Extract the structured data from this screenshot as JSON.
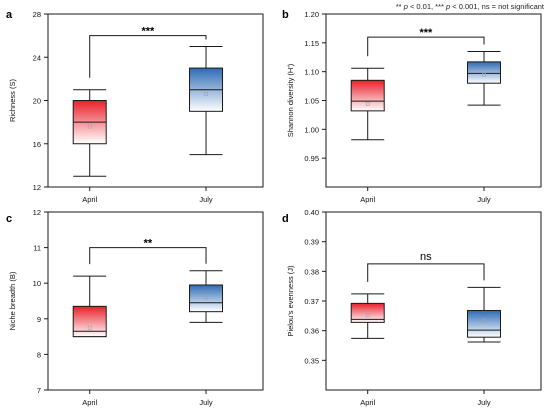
{
  "significance_note": {
    "part1": "** ",
    "p1": "p",
    "part2": " < 0.01, *** ",
    "p2": "p",
    "part3": " < 0.001, ns = not significant"
  },
  "colors": {
    "april_fill_top": "#e8202a",
    "april_fill_bottom": "#ffffff",
    "july_fill_top": "#2e6bb4",
    "july_fill_bottom": "#ffffff",
    "line": "#1a1a1a"
  },
  "chart_data": [
    {
      "type": "box",
      "panel_label": "a",
      "ylabel": "Richness (S)",
      "ylim": [
        12,
        28
      ],
      "yticks": [
        12,
        16,
        20,
        24,
        28
      ],
      "tick_labels": [
        "12",
        "16",
        "20",
        "24",
        "28"
      ],
      "categories": [
        "April",
        "July"
      ],
      "boxes": [
        {
          "category": "April",
          "min": 13,
          "q1": 16,
          "median": 18,
          "q3": 20,
          "max": 21,
          "mean": 17.6,
          "color": "red"
        },
        {
          "category": "July",
          "min": 15,
          "q1": 19,
          "median": 21,
          "q3": 23,
          "max": 25,
          "mean": 20.6,
          "color": "blue"
        }
      ],
      "bracket_y": 26,
      "significance": "***"
    },
    {
      "type": "box",
      "panel_label": "b",
      "ylabel": "Shannon diversity (H')",
      "ylim": [
        0.9,
        1.2
      ],
      "yticks": [
        0.95,
        1.0,
        1.05,
        1.1,
        1.15,
        1.2
      ],
      "tick_labels": [
        "0.95",
        "1.00",
        "1.05",
        "1.10",
        "1.15",
        "1.20"
      ],
      "categories": [
        "April",
        "July"
      ],
      "boxes": [
        {
          "category": "April",
          "min": 0.982,
          "q1": 1.032,
          "median": 1.049,
          "q3": 1.085,
          "max": 1.106,
          "mean": 1.044,
          "color": "red"
        },
        {
          "category": "July",
          "min": 1.042,
          "q1": 1.08,
          "median": 1.097,
          "q3": 1.117,
          "max": 1.135,
          "mean": 1.095,
          "color": "blue"
        }
      ],
      "bracket_y": 1.16,
      "significance": "***"
    },
    {
      "type": "box",
      "panel_label": "c",
      "ylabel": "Niche breadth (B)",
      "ylim": [
        7,
        12
      ],
      "yticks": [
        7,
        8,
        9,
        10,
        11,
        12
      ],
      "tick_labels": [
        "7",
        "8",
        "9",
        "10",
        "11",
        "12"
      ],
      "categories": [
        "April",
        "July"
      ],
      "boxes": [
        {
          "category": "April",
          "min": 8.5,
          "q1": 8.5,
          "median": 8.65,
          "q3": 9.35,
          "max": 10.2,
          "mean": 8.75,
          "color": "red"
        },
        {
          "category": "July",
          "min": 8.9,
          "q1": 9.2,
          "median": 9.45,
          "q3": 9.95,
          "max": 10.35,
          "mean": 9.6,
          "color": "blue"
        }
      ],
      "bracket_y": 11.0,
      "significance": "**"
    },
    {
      "type": "box",
      "panel_label": "d",
      "ylabel": "Pielou's evenness (J)",
      "ylim": [
        0.34,
        0.4
      ],
      "yticks": [
        0.35,
        0.36,
        0.37,
        0.38,
        0.39,
        0.4
      ],
      "tick_labels": [
        "0.35",
        "0.36",
        "0.37",
        "0.38",
        "0.39",
        "0.40"
      ],
      "categories": [
        "April",
        "July"
      ],
      "boxes": [
        {
          "category": "April",
          "min": 0.3574,
          "q1": 0.3628,
          "median": 0.3638,
          "q3": 0.3692,
          "max": 0.3724,
          "mean": 0.3652,
          "color": "red"
        },
        {
          "category": "July",
          "min": 0.3562,
          "q1": 0.3578,
          "median": 0.3602,
          "q3": 0.3668,
          "max": 0.3746,
          "mean": 0.3632,
          "color": "blue"
        }
      ],
      "bracket_y": 0.3825,
      "significance": "ns"
    }
  ]
}
